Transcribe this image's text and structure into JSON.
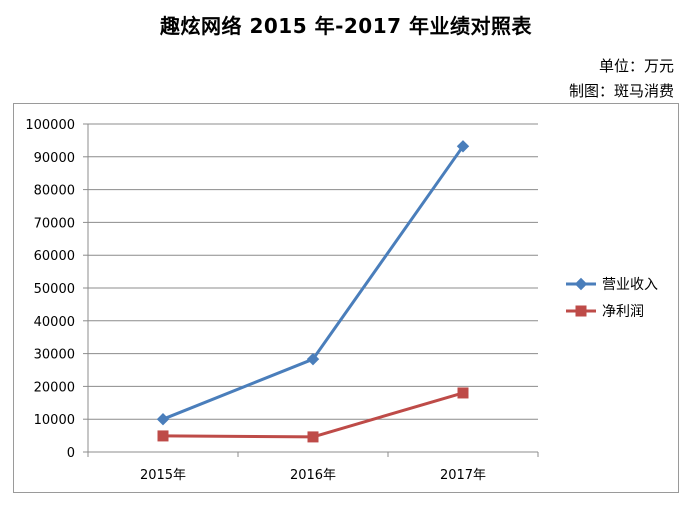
{
  "header": {
    "title": "趣炫网络 2015 年-2017 年业绩对照表",
    "unit": "单位：万元",
    "maker": "制图：斑马消费"
  },
  "chart_data": {
    "type": "line",
    "categories": [
      "2015年",
      "2016年",
      "2017年"
    ],
    "series": [
      {
        "name": "营业收入",
        "values": [
          10000,
          28300,
          93200
        ],
        "color": "#4a7ebb",
        "marker": "diamond"
      },
      {
        "name": "净利润",
        "values": [
          4900,
          4600,
          18000
        ],
        "color": "#be4b48",
        "marker": "square"
      }
    ],
    "ylim": [
      0,
      100000
    ],
    "yticks": [
      0,
      10000,
      20000,
      30000,
      40000,
      50000,
      60000,
      70000,
      80000,
      90000,
      100000
    ],
    "grid": true,
    "legend": "right"
  }
}
